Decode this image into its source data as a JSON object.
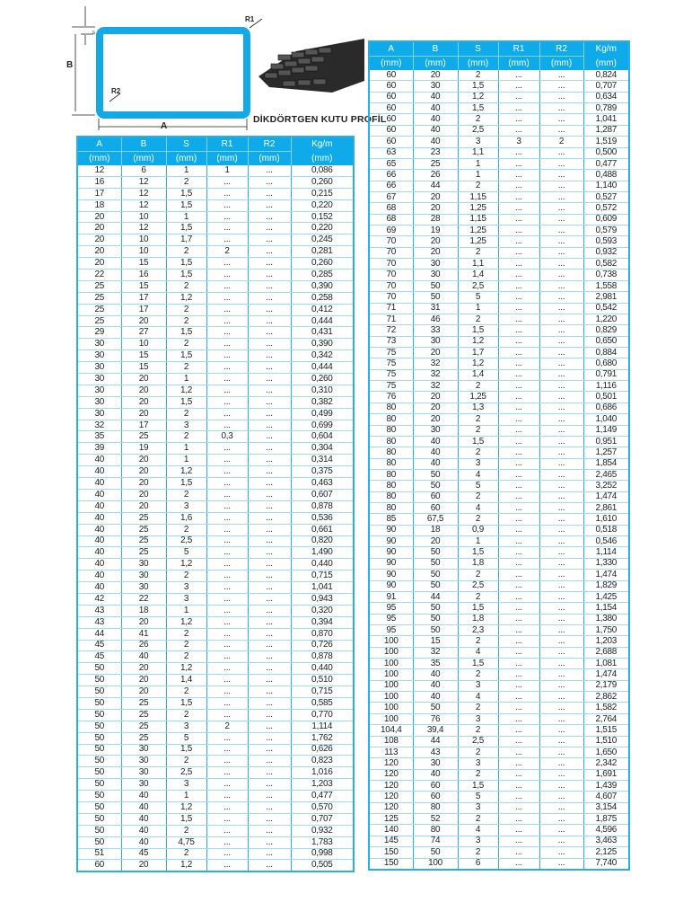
{
  "diagram": {
    "labels": {
      "s": "s",
      "b": "B",
      "a": "A",
      "r1": "R1",
      "r2": "R2"
    },
    "title": "DİKDÖRTGEN KUTU PROFİL",
    "profile_color": "#12a9e6"
  },
  "headers": {
    "top": [
      "A",
      "B",
      "S",
      "R1",
      "R2",
      "Kg/m"
    ],
    "units": [
      "(mm)",
      "(mm)",
      "(mm)",
      "(mm)",
      "(mm)",
      "(mm)"
    ]
  },
  "left": {
    "rows": [
      [
        "12",
        "6",
        "1",
        "1",
        "...",
        "0,086"
      ],
      [
        "16",
        "12",
        "2",
        "...",
        "...",
        "0,260"
      ],
      [
        "17",
        "12",
        "1,5",
        "...",
        "...",
        "0,215"
      ],
      [
        "18",
        "12",
        "1,5",
        "...",
        "...",
        "0,220"
      ],
      [
        "20",
        "10",
        "1",
        "...",
        "...",
        "0,152"
      ],
      [
        "20",
        "12",
        "1,5",
        "...",
        "...",
        "0,220"
      ],
      [
        "20",
        "10",
        "1,7",
        "...",
        "...",
        "0,245"
      ],
      [
        "20",
        "10",
        "2",
        "2",
        "...",
        "0,281"
      ],
      [
        "20",
        "15",
        "1,5",
        "...",
        "...",
        "0,260"
      ],
      [
        "22",
        "16",
        "1,5",
        "...",
        "...",
        "0,285"
      ],
      [
        "25",
        "15",
        "2",
        "...",
        "...",
        "0,390"
      ],
      [
        "25",
        "17",
        "1,2",
        "...",
        "...",
        "0,258"
      ],
      [
        "25",
        "17",
        "2",
        "...",
        "...",
        "0,412"
      ],
      [
        "25",
        "20",
        "2",
        "...",
        "...",
        "0,444"
      ],
      [
        "29",
        "27",
        "1,5",
        "...",
        "...",
        "0,431"
      ],
      [
        "30",
        "10",
        "2",
        "...",
        "...",
        "0,390"
      ],
      [
        "30",
        "15",
        "1,5",
        "...",
        "...",
        "0,342"
      ],
      [
        "30",
        "15",
        "2",
        "...",
        "...",
        "0,444"
      ],
      [
        "30",
        "20",
        "1",
        "...",
        "...",
        "0,260"
      ],
      [
        "30",
        "20",
        "1,2",
        "...",
        "...",
        "0,310"
      ],
      [
        "30",
        "20",
        "1,5",
        "...",
        "...",
        "0,382"
      ],
      [
        "30",
        "20",
        "2",
        "...",
        "...",
        "0,499"
      ],
      [
        "32",
        "17",
        "3",
        "...",
        "...",
        "0,699"
      ],
      [
        "35",
        "25",
        "2",
        "0,3",
        "...",
        "0,604"
      ],
      [
        "39",
        "19",
        "1",
        "...",
        "...",
        "0,304"
      ],
      [
        "40",
        "20",
        "1",
        "...",
        "...",
        "0,314"
      ],
      [
        "40",
        "20",
        "1,2",
        "...",
        "...",
        "0,375"
      ],
      [
        "40",
        "20",
        "1,5",
        "...",
        "...",
        "0,463"
      ],
      [
        "40",
        "20",
        "2",
        "...",
        "...",
        "0,607"
      ],
      [
        "40",
        "20",
        "3",
        "...",
        "...",
        "0,878"
      ],
      [
        "40",
        "25",
        "1,6",
        "...",
        "...",
        "0,536"
      ],
      [
        "40",
        "25",
        "2",
        "...",
        "...",
        "0,661"
      ],
      [
        "40",
        "25",
        "2,5",
        "...",
        "...",
        "0,820"
      ],
      [
        "40",
        "25",
        "5",
        "...",
        "...",
        "1,490"
      ],
      [
        "40",
        "30",
        "1,2",
        "...",
        "...",
        "0,440"
      ],
      [
        "40",
        "30",
        "2",
        "...",
        "...",
        "0,715"
      ],
      [
        "40",
        "30",
        "3",
        "...",
        "...",
        "1,041"
      ],
      [
        "42",
        "22",
        "3",
        "...",
        "...",
        "0,943"
      ],
      [
        "43",
        "18",
        "1",
        "...",
        "...",
        "0,320"
      ],
      [
        "43",
        "20",
        "1,2",
        "...",
        "...",
        "0,394"
      ],
      [
        "44",
        "41",
        "2",
        "...",
        "...",
        "0,870"
      ],
      [
        "45",
        "26",
        "2",
        "...",
        "...",
        "0,726"
      ],
      [
        "45",
        "40",
        "2",
        "...",
        "...",
        "0,878"
      ],
      [
        "50",
        "20",
        "1,2",
        "...",
        "...",
        "0,440"
      ],
      [
        "50",
        "20",
        "1,4",
        "...",
        "...",
        "0,510"
      ],
      [
        "50",
        "20",
        "2",
        "...",
        "...",
        "0,715"
      ],
      [
        "50",
        "25",
        "1,5",
        "...",
        "...",
        "0,585"
      ],
      [
        "50",
        "25",
        "2",
        "...",
        "...",
        "0,770"
      ],
      [
        "50",
        "25",
        "3",
        "2",
        "...",
        "1,114"
      ],
      [
        "50",
        "25",
        "5",
        "...",
        "...",
        "1,762"
      ],
      [
        "50",
        "30",
        "1,5",
        "...",
        "...",
        "0,626"
      ],
      [
        "50",
        "30",
        "2",
        "...",
        "...",
        "0,823"
      ],
      [
        "50",
        "30",
        "2,5",
        "...",
        "...",
        "1,016"
      ],
      [
        "50",
        "30",
        "3",
        "...",
        "...",
        "1,203"
      ],
      [
        "50",
        "40",
        "1",
        "...",
        "...",
        "0,477"
      ],
      [
        "50",
        "40",
        "1,2",
        "...",
        "...",
        "0,570"
      ],
      [
        "50",
        "40",
        "1,5",
        "...",
        "...",
        "0,707"
      ],
      [
        "50",
        "40",
        "2",
        "...",
        "...",
        "0,932"
      ],
      [
        "50",
        "40",
        "4,75",
        "...",
        "...",
        "1,783"
      ],
      [
        "51",
        "45",
        "2",
        "...",
        "...",
        "0,998"
      ],
      [
        "60",
        "20",
        "1,2",
        "...",
        "...",
        "0,505"
      ]
    ]
  },
  "right": {
    "rows": [
      [
        "60",
        "20",
        "2",
        "...",
        "...",
        "0,824"
      ],
      [
        "60",
        "30",
        "1,5",
        "...",
        "...",
        "0,707"
      ],
      [
        "60",
        "40",
        "1,2",
        "...",
        "...",
        "0,634"
      ],
      [
        "60",
        "40",
        "1,5",
        "...",
        "...",
        "0,789"
      ],
      [
        "60",
        "40",
        "2",
        "...",
        "...",
        "1,041"
      ],
      [
        "60",
        "40",
        "2,5",
        "...",
        "...",
        "1,287"
      ],
      [
        "60",
        "40",
        "3",
        "3",
        "2",
        "1,519"
      ],
      [
        "63",
        "23",
        "1,1",
        "...",
        "...",
        "0,500"
      ],
      [
        "65",
        "25",
        "1",
        "...",
        "...",
        "0,477"
      ],
      [
        "66",
        "26",
        "1",
        "...",
        "...",
        "0,488"
      ],
      [
        "66",
        "44",
        "2",
        "...",
        "...",
        "1,140"
      ],
      [
        "67",
        "20",
        "1,15",
        "...",
        "...",
        "0,527"
      ],
      [
        "68",
        "20",
        "1,25",
        "...",
        "...",
        "0,572"
      ],
      [
        "68",
        "28",
        "1,15",
        "...",
        "...",
        "0,609"
      ],
      [
        "69",
        "19",
        "1,25",
        "...",
        "...",
        "0,579"
      ],
      [
        "70",
        "20",
        "1,25",
        "...",
        "...",
        "0,593"
      ],
      [
        "70",
        "20",
        "2",
        "...",
        "...",
        "0,932"
      ],
      [
        "70",
        "30",
        "1,1",
        "...",
        "...",
        "0,582"
      ],
      [
        "70",
        "30",
        "1,4",
        "...",
        "...",
        "0,738"
      ],
      [
        "70",
        "50",
        "2,5",
        "...",
        "...",
        "1,558"
      ],
      [
        "70",
        "50",
        "5",
        "...",
        "...",
        "2,981"
      ],
      [
        "71",
        "31",
        "1",
        "...",
        "...",
        "0,542"
      ],
      [
        "71",
        "46",
        "2",
        "...",
        "...",
        "1,220"
      ],
      [
        "72",
        "33",
        "1,5",
        "...",
        "...",
        "0,829"
      ],
      [
        "73",
        "30",
        "1,2",
        "...",
        "...",
        "0,650"
      ],
      [
        "75",
        "20",
        "1,7",
        "...",
        "...",
        "0,884"
      ],
      [
        "75",
        "32",
        "1,2",
        "...",
        "...",
        "0,680"
      ],
      [
        "75",
        "32",
        "1,4",
        "...",
        "...",
        "0,791"
      ],
      [
        "75",
        "32",
        "2",
        "...",
        "...",
        "1,116"
      ],
      [
        "76",
        "20",
        "1,25",
        "...",
        "...",
        "0,501"
      ],
      [
        "80",
        "20",
        "1,3",
        "...",
        "...",
        "0,686"
      ],
      [
        "80",
        "20",
        "2",
        "...",
        "...",
        "1,040"
      ],
      [
        "80",
        "30",
        "2",
        "...",
        "...",
        "1,149"
      ],
      [
        "80",
        "40",
        "1,5",
        "...",
        "...",
        "0,951"
      ],
      [
        "80",
        "40",
        "2",
        "...",
        "...",
        "1,257"
      ],
      [
        "80",
        "40",
        "3",
        "...",
        "...",
        "1,854"
      ],
      [
        "80",
        "50",
        "4",
        "...",
        "...",
        "2,465"
      ],
      [
        "80",
        "50",
        "5",
        "...",
        "...",
        "3,252"
      ],
      [
        "80",
        "60",
        "2",
        "...",
        "...",
        "1,474"
      ],
      [
        "80",
        "60",
        "4",
        "...",
        "...",
        "2,861"
      ],
      [
        "85",
        "67,5",
        "2",
        "...",
        "...",
        "1,610"
      ],
      [
        "90",
        "18",
        "0,9",
        "...",
        "...",
        "0,518"
      ],
      [
        "90",
        "20",
        "1",
        "...",
        "...",
        "0,546"
      ],
      [
        "90",
        "50",
        "1,5",
        "...",
        "...",
        "1,114"
      ],
      [
        "90",
        "50",
        "1,8",
        "...",
        "...",
        "1,330"
      ],
      [
        "90",
        "50",
        "2",
        "...",
        "...",
        "1,474"
      ],
      [
        "90",
        "50",
        "2,5",
        "...",
        "...",
        "1,829"
      ],
      [
        "91",
        "44",
        "2",
        "...",
        "...",
        "1,425"
      ],
      [
        "95",
        "50",
        "1,5",
        "...",
        "...",
        "1,154"
      ],
      [
        "95",
        "50",
        "1,8",
        "...",
        "...",
        "1,380"
      ],
      [
        "95",
        "50",
        "2,3",
        "...",
        "...",
        "1,750"
      ],
      [
        "100",
        "15",
        "2",
        "...",
        "...",
        "1,203"
      ],
      [
        "100",
        "32",
        "4",
        "...",
        "...",
        "2,688"
      ],
      [
        "100",
        "35",
        "1,5",
        "...",
        "...",
        "1,081"
      ],
      [
        "100",
        "40",
        "2",
        "...",
        "...",
        "1,474"
      ],
      [
        "100",
        "40",
        "3",
        "...",
        "...",
        "2,179"
      ],
      [
        "100",
        "40",
        "4",
        "...",
        "...",
        "2,862"
      ],
      [
        "100",
        "50",
        "2",
        "...",
        "...",
        "1,582"
      ],
      [
        "100",
        "76",
        "3",
        "...",
        "...",
        "2,764"
      ],
      [
        "104,4",
        "39,4",
        "2",
        "...",
        "...",
        "1,515"
      ],
      [
        "108",
        "44",
        "2,5",
        "...",
        "...",
        "1,510"
      ],
      [
        "113",
        "43",
        "2",
        "...",
        "...",
        "1,650"
      ],
      [
        "120",
        "30",
        "3",
        "...",
        "...",
        "2,342"
      ],
      [
        "120",
        "40",
        "2",
        "...",
        "...",
        "1,691"
      ],
      [
        "120",
        "60",
        "1,5",
        "...",
        "...",
        "1,439"
      ],
      [
        "120",
        "60",
        "5",
        "...",
        "...",
        "4,607"
      ],
      [
        "120",
        "80",
        "3",
        "...",
        "...",
        "3,154"
      ],
      [
        "125",
        "52",
        "2",
        "...",
        "...",
        "1,875"
      ],
      [
        "140",
        "80",
        "4",
        "...",
        "...",
        "4,596"
      ],
      [
        "145",
        "74",
        "3",
        "...",
        "...",
        "3,463"
      ],
      [
        "150",
        "50",
        "2",
        "...",
        "...",
        "2,125"
      ],
      [
        "150",
        "100",
        "6",
        "...",
        "...",
        "7,740"
      ]
    ]
  }
}
